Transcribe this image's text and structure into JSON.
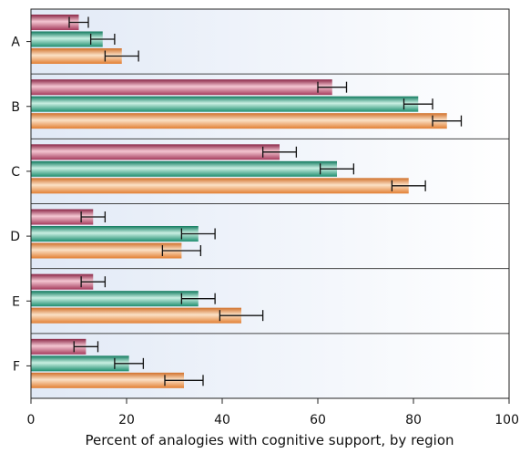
{
  "chart_data": {
    "type": "bar",
    "orientation": "horizontal",
    "title": "",
    "xlabel": "Percent of analogies with cognitive support, by region",
    "ylabel": "",
    "categories": [
      "A",
      "B",
      "C",
      "D",
      "E",
      "F"
    ],
    "xlim": [
      0,
      100
    ],
    "x_ticks": [
      "0",
      "20",
      "40",
      "60",
      "80",
      "100"
    ],
    "grid": false,
    "legend": "none",
    "series": [
      {
        "color": "#b8506e",
        "values": [
          10,
          63,
          52,
          13,
          13,
          11.5
        ],
        "errors": [
          2,
          3,
          3.5,
          2.5,
          2.5,
          2.5
        ]
      },
      {
        "color": "#2a9d80",
        "values": [
          15,
          81,
          64,
          35,
          35,
          20.5
        ],
        "errors": [
          2.5,
          3,
          3.5,
          3.5,
          3.5,
          3
        ]
      },
      {
        "color": "#e98a3c",
        "values": [
          19,
          87,
          79,
          31.5,
          44,
          32
        ],
        "errors": [
          3.5,
          3,
          3.5,
          4,
          4.5,
          4
        ]
      }
    ]
  }
}
